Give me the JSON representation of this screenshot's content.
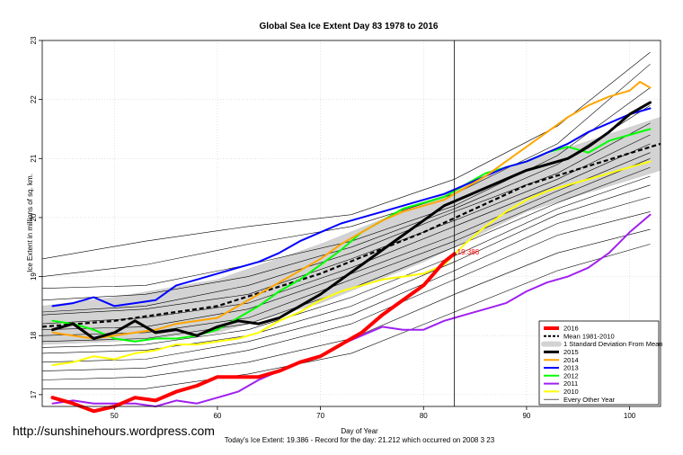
{
  "chart_data": {
    "type": "line",
    "title": "Global Sea Ice Extent Day 83 1978 to 2016",
    "xlabel": "Day of Year",
    "ylabel": "Ice Extent in millions of sq. km.",
    "xlim": [
      43,
      103
    ],
    "ylim": [
      16.8,
      23
    ],
    "x_ticks": [
      50,
      60,
      70,
      80,
      90,
      100
    ],
    "y_ticks": [
      17,
      18,
      19,
      20,
      21,
      22,
      23
    ],
    "grid": true,
    "legend_position": "bottom-right",
    "vertical_marker_x": 83,
    "current_value_label": "19.386",
    "footer_text": "Today's Ice Extent: 19.386  -  Record for the day: 21.212 which occurred on 2008 3 23",
    "watermark": "http://sunshinehours.wordpress.com",
    "legend": [
      {
        "label": "2016",
        "kind": "line",
        "color": "#ff0000",
        "width": 4
      },
      {
        "label": "Mean 1981-2010",
        "kind": "dash",
        "color": "#000000",
        "width": 2
      },
      {
        "label": "1 Standard Deviation From Mean",
        "kind": "band",
        "color": "#d3d3d3",
        "width": 6
      },
      {
        "label": "2015",
        "kind": "line",
        "color": "#000000",
        "width": 3
      },
      {
        "label": "2014",
        "kind": "line",
        "color": "#ffa500",
        "width": 2
      },
      {
        "label": "2013",
        "kind": "line",
        "color": "#0000ff",
        "width": 2
      },
      {
        "label": "2012",
        "kind": "line",
        "color": "#00ff00",
        "width": 2
      },
      {
        "label": "2011",
        "kind": "line",
        "color": "#a020f0",
        "width": 2
      },
      {
        "label": "2010",
        "kind": "line",
        "color": "#ffff00",
        "width": 2
      },
      {
        "label": "Every Other Year",
        "kind": "line",
        "color": "#000000",
        "width": 0.6
      }
    ],
    "mean": {
      "x": [
        43,
        50,
        60,
        70,
        80,
        90,
        103
      ],
      "y": [
        18.15,
        18.25,
        18.5,
        19.05,
        19.75,
        20.55,
        21.25
      ]
    },
    "std_band": {
      "x": [
        43,
        50,
        60,
        70,
        80,
        90,
        103
      ],
      "upper": [
        18.5,
        18.65,
        18.95,
        19.55,
        20.25,
        20.95,
        21.7
      ],
      "lower": [
        17.85,
        17.9,
        18.05,
        18.55,
        19.25,
        20.1,
        20.8
      ]
    },
    "series": [
      {
        "name": "2016",
        "color": "#ff0000",
        "width": 4,
        "x": [
          44,
          46,
          48,
          50,
          52,
          54,
          56,
          58,
          60,
          62,
          64,
          66,
          68,
          70,
          72,
          74,
          76,
          78,
          80,
          82,
          83
        ],
        "y": [
          16.95,
          16.85,
          16.72,
          16.8,
          16.95,
          16.9,
          17.05,
          17.15,
          17.3,
          17.3,
          17.3,
          17.4,
          17.55,
          17.65,
          17.85,
          18.05,
          18.35,
          18.6,
          18.85,
          19.25,
          19.386
        ]
      },
      {
        "name": "2015",
        "color": "#000000",
        "width": 3,
        "x": [
          44,
          46,
          48,
          50,
          52,
          54,
          56,
          58,
          60,
          62,
          64,
          66,
          68,
          70,
          72,
          74,
          76,
          78,
          80,
          82,
          84,
          86,
          88,
          90,
          92,
          94,
          96,
          98,
          100,
          102
        ],
        "y": [
          18.1,
          18.2,
          17.95,
          18.05,
          18.25,
          18.05,
          18.1,
          18.0,
          18.15,
          18.25,
          18.2,
          18.3,
          18.5,
          18.7,
          18.95,
          19.2,
          19.45,
          19.7,
          19.95,
          20.2,
          20.35,
          20.5,
          20.65,
          20.8,
          20.9,
          21.0,
          21.2,
          21.45,
          21.75,
          21.95
        ]
      },
      {
        "name": "2014",
        "color": "#ffa500",
        "width": 2,
        "x": [
          44,
          46,
          48,
          50,
          52,
          54,
          56,
          58,
          60,
          62,
          64,
          66,
          68,
          70,
          72,
          74,
          76,
          78,
          80,
          82,
          84,
          86,
          88,
          90,
          92,
          94,
          96,
          98,
          100,
          101,
          102
        ],
        "y": [
          18.05,
          18.0,
          17.95,
          18.0,
          18.05,
          18.1,
          18.2,
          18.25,
          18.3,
          18.5,
          18.7,
          18.9,
          19.1,
          19.3,
          19.55,
          19.75,
          19.95,
          20.1,
          20.2,
          20.3,
          20.5,
          20.7,
          20.95,
          21.2,
          21.45,
          21.7,
          21.9,
          22.05,
          22.15,
          22.3,
          22.2
        ]
      },
      {
        "name": "2013",
        "color": "#0000ff",
        "width": 2,
        "x": [
          44,
          46,
          48,
          50,
          52,
          54,
          56,
          58,
          60,
          62,
          64,
          66,
          68,
          70,
          72,
          74,
          76,
          78,
          80,
          82,
          84,
          86,
          88,
          90,
          92,
          94,
          96,
          98,
          100,
          102
        ],
        "y": [
          18.5,
          18.55,
          18.65,
          18.5,
          18.55,
          18.6,
          18.85,
          18.95,
          19.05,
          19.15,
          19.25,
          19.4,
          19.6,
          19.75,
          19.9,
          20.0,
          20.1,
          20.2,
          20.3,
          20.4,
          20.55,
          20.7,
          20.85,
          20.95,
          21.1,
          21.25,
          21.45,
          21.6,
          21.75,
          21.85
        ]
      },
      {
        "name": "2012",
        "color": "#00ff00",
        "width": 2,
        "x": [
          44,
          46,
          48,
          50,
          52,
          54,
          56,
          58,
          60,
          62,
          64,
          66,
          68,
          70,
          72,
          74,
          76,
          78,
          80,
          82,
          84,
          86,
          88,
          90,
          92,
          94,
          96,
          98,
          100,
          102
        ],
        "y": [
          18.25,
          18.2,
          18.1,
          17.95,
          17.9,
          17.95,
          17.95,
          18.0,
          18.1,
          18.3,
          18.5,
          18.75,
          18.95,
          19.2,
          19.45,
          19.75,
          19.95,
          20.15,
          20.25,
          20.35,
          20.55,
          20.75,
          20.85,
          20.95,
          21.1,
          21.2,
          21.1,
          21.3,
          21.4,
          21.5
        ]
      },
      {
        "name": "2011",
        "color": "#a020f0",
        "width": 2,
        "x": [
          44,
          46,
          48,
          50,
          52,
          54,
          56,
          58,
          60,
          62,
          64,
          66,
          68,
          70,
          72,
          74,
          76,
          78,
          80,
          82,
          84,
          86,
          88,
          90,
          92,
          94,
          96,
          98,
          100,
          102
        ],
        "y": [
          16.85,
          16.9,
          16.85,
          16.85,
          16.85,
          16.8,
          16.9,
          16.85,
          16.95,
          17.05,
          17.25,
          17.4,
          17.55,
          17.65,
          17.85,
          18.0,
          18.15,
          18.1,
          18.1,
          18.25,
          18.35,
          18.45,
          18.55,
          18.75,
          18.9,
          19.0,
          19.15,
          19.4,
          19.75,
          20.05
        ]
      },
      {
        "name": "2010",
        "color": "#ffff00",
        "width": 2,
        "x": [
          44,
          46,
          48,
          50,
          52,
          54,
          56,
          58,
          60,
          62,
          64,
          66,
          68,
          70,
          72,
          74,
          76,
          78,
          80,
          82,
          84,
          86,
          88,
          90,
          92,
          94,
          96,
          98,
          100,
          102
        ],
        "y": [
          17.5,
          17.55,
          17.65,
          17.6,
          17.7,
          17.75,
          17.85,
          17.85,
          17.9,
          17.95,
          18.05,
          18.25,
          18.4,
          18.6,
          18.75,
          18.85,
          18.95,
          19.0,
          19.05,
          19.2,
          19.55,
          19.85,
          20.1,
          20.3,
          20.45,
          20.55,
          20.65,
          20.75,
          20.85,
          20.95
        ]
      }
    ],
    "other_years": [
      {
        "x": [
          43,
          53,
          63,
          73,
          83,
          93,
          102
        ],
        "y": [
          19.3,
          19.6,
          19.85,
          20.05,
          20.65,
          21.55,
          22.8
        ]
      },
      {
        "x": [
          43,
          53,
          63,
          73,
          83,
          93,
          102
        ],
        "y": [
          19.0,
          19.2,
          19.55,
          19.85,
          20.4,
          21.25,
          22.6
        ]
      },
      {
        "x": [
          43,
          53,
          63,
          73,
          83,
          93,
          102
        ],
        "y": [
          18.8,
          18.85,
          19.2,
          19.6,
          20.2,
          21.05,
          22.2
        ]
      },
      {
        "x": [
          43,
          53,
          63,
          73,
          83,
          93,
          102
        ],
        "y": [
          18.6,
          18.7,
          19.0,
          19.5,
          20.15,
          20.9,
          21.9
        ]
      },
      {
        "x": [
          43,
          53,
          63,
          73,
          83,
          93,
          102
        ],
        "y": [
          18.4,
          18.5,
          18.85,
          19.4,
          20.1,
          20.75,
          21.6
        ]
      },
      {
        "x": [
          43,
          53,
          63,
          73,
          83,
          93,
          102
        ],
        "y": [
          18.35,
          18.45,
          18.7,
          19.3,
          19.95,
          20.65,
          21.4
        ]
      },
      {
        "x": [
          43,
          53,
          63,
          73,
          83,
          93,
          102
        ],
        "y": [
          18.2,
          18.3,
          18.55,
          19.15,
          19.85,
          20.55,
          21.25
        ]
      },
      {
        "x": [
          43,
          53,
          63,
          73,
          83,
          93,
          102
        ],
        "y": [
          18.1,
          18.15,
          18.45,
          19.05,
          19.7,
          20.45,
          21.1
        ]
      },
      {
        "x": [
          43,
          53,
          63,
          73,
          83,
          93,
          102
        ],
        "y": [
          18.0,
          18.05,
          18.3,
          18.95,
          19.6,
          20.35,
          21.0
        ]
      },
      {
        "x": [
          43,
          53,
          63,
          73,
          83,
          93,
          102
        ],
        "y": [
          17.9,
          17.95,
          18.2,
          18.8,
          19.5,
          20.25,
          20.85
        ]
      },
      {
        "x": [
          43,
          53,
          63,
          73,
          83,
          93,
          102
        ],
        "y": [
          17.8,
          17.85,
          18.1,
          18.65,
          19.35,
          20.15,
          20.7
        ]
      },
      {
        "x": [
          43,
          53,
          63,
          73,
          83,
          93,
          102
        ],
        "y": [
          17.7,
          17.75,
          18.0,
          18.5,
          19.25,
          20.05,
          20.55
        ]
      },
      {
        "x": [
          43,
          53,
          63,
          73,
          83,
          93,
          102
        ],
        "y": [
          17.55,
          17.6,
          17.9,
          18.35,
          19.1,
          19.9,
          20.35
        ]
      },
      {
        "x": [
          43,
          53,
          63,
          73,
          83,
          93,
          102
        ],
        "y": [
          17.4,
          17.45,
          17.75,
          18.2,
          18.95,
          19.7,
          20.1
        ]
      },
      {
        "x": [
          43,
          53,
          63,
          73,
          83,
          93,
          102
        ],
        "y": [
          17.25,
          17.3,
          17.55,
          17.95,
          18.7,
          19.4,
          19.8
        ]
      },
      {
        "x": [
          43,
          53,
          63,
          73,
          83,
          93,
          102
        ],
        "y": [
          17.1,
          17.1,
          17.35,
          17.7,
          18.4,
          19.1,
          19.55
        ]
      }
    ]
  }
}
